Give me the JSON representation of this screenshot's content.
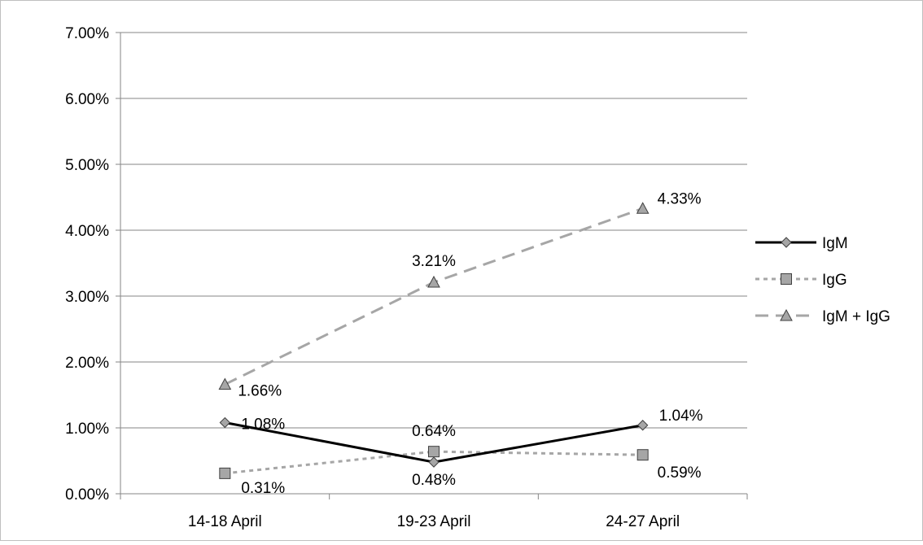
{
  "chart_data": {
    "type": "line",
    "categories": [
      "14-18 April",
      "19-23 April",
      "24-27 April"
    ],
    "ylim": [
      0,
      0.07
    ],
    "yticks": [
      0,
      0.01,
      0.02,
      0.03,
      0.04,
      0.05,
      0.06,
      0.07
    ],
    "ytick_labels": [
      "0.00%",
      "1.00%",
      "2.00%",
      "3.00%",
      "4.00%",
      "5.00%",
      "6.00%",
      "7.00%"
    ],
    "grid": true,
    "legend_position": "right",
    "series": [
      {
        "name": "IgM",
        "values": [
          0.0108,
          0.0048,
          0.0104
        ],
        "labels": [
          "1.08%",
          "0.48%",
          "1.04%"
        ],
        "marker": "diamond",
        "line_style": "solid",
        "line_color": "#000000",
        "marker_fill": "#a6a6a6"
      },
      {
        "name": "IgG",
        "values": [
          0.0031,
          0.0064,
          0.0059
        ],
        "labels": [
          "0.31%",
          "0.64%",
          "0.59%"
        ],
        "marker": "square",
        "line_style": "dotted",
        "line_color": "#a6a6a6",
        "marker_fill": "#a6a6a6"
      },
      {
        "name": "IgM + IgG",
        "values": [
          0.0166,
          0.0321,
          0.0433
        ],
        "labels": [
          "1.66%",
          "3.21%",
          "4.33%"
        ],
        "marker": "triangle",
        "line_style": "dashed",
        "line_color": "#a6a6a6",
        "marker_fill": "#a6a6a6"
      }
    ]
  }
}
